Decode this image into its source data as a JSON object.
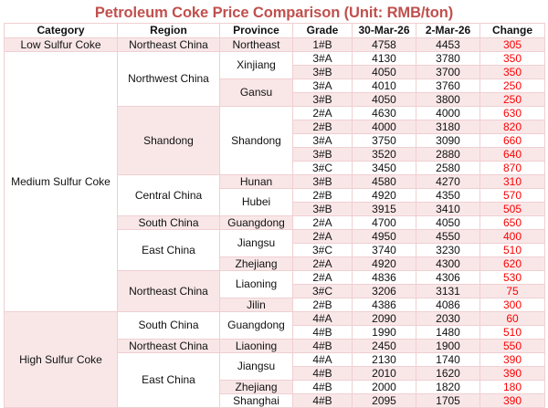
{
  "title": "Petroleum Coke Price Comparison  (Unit: RMB/ton)",
  "colors": {
    "title": "#c0504d",
    "change_text": "#ff0000",
    "row_shade": "#f9e7e8",
    "grid": "#f0cfd1"
  },
  "headers": [
    "Category",
    "Region",
    "Province",
    "Grade",
    "30-Mar-26",
    "2-Mar-26",
    "Change"
  ],
  "rows": [
    {
      "grade": "1#B",
      "mar30": "4758",
      "mar2": "4453",
      "change": "305"
    },
    {
      "grade": "3#A",
      "mar30": "4130",
      "mar2": "3780",
      "change": "350"
    },
    {
      "grade": "3#B",
      "mar30": "4050",
      "mar2": "3700",
      "change": "350"
    },
    {
      "grade": "3#A",
      "mar30": "4010",
      "mar2": "3760",
      "change": "250"
    },
    {
      "grade": "3#B",
      "mar30": "4050",
      "mar2": "3800",
      "change": "250"
    },
    {
      "grade": "2#A",
      "mar30": "4630",
      "mar2": "4000",
      "change": "630"
    },
    {
      "grade": "2#B",
      "mar30": "4000",
      "mar2": "3180",
      "change": "820"
    },
    {
      "grade": "3#A",
      "mar30": "3750",
      "mar2": "3090",
      "change": "660"
    },
    {
      "grade": "3#B",
      "mar30": "3520",
      "mar2": "2880",
      "change": "640"
    },
    {
      "grade": "3#C",
      "mar30": "3450",
      "mar2": "2580",
      "change": "870"
    },
    {
      "grade": "3#B",
      "mar30": "4580",
      "mar2": "4270",
      "change": "310"
    },
    {
      "grade": "2#B",
      "mar30": "4920",
      "mar2": "4350",
      "change": "570"
    },
    {
      "grade": "3#B",
      "mar30": "3915",
      "mar2": "3410",
      "change": "505"
    },
    {
      "grade": "2#A",
      "mar30": "4700",
      "mar2": "4050",
      "change": "650"
    },
    {
      "grade": "2#A",
      "mar30": "4950",
      "mar2": "4550",
      "change": "400"
    },
    {
      "grade": "3#C",
      "mar30": "3740",
      "mar2": "3230",
      "change": "510"
    },
    {
      "grade": "2#A",
      "mar30": "4920",
      "mar2": "4300",
      "change": "620"
    },
    {
      "grade": "2#A",
      "mar30": "4836",
      "mar2": "4306",
      "change": "530"
    },
    {
      "grade": "3#C",
      "mar30": "3206",
      "mar2": "3131",
      "change": "75"
    },
    {
      "grade": "2#B",
      "mar30": "4386",
      "mar2": "4086",
      "change": "300"
    },
    {
      "grade": "4#A",
      "mar30": "2090",
      "mar2": "2030",
      "change": "60"
    },
    {
      "grade": "4#B",
      "mar30": "1990",
      "mar2": "1480",
      "change": "510"
    },
    {
      "grade": "4#B",
      "mar30": "2450",
      "mar2": "1900",
      "change": "550"
    },
    {
      "grade": "4#A",
      "mar30": "2130",
      "mar2": "1740",
      "change": "390"
    },
    {
      "grade": "4#B",
      "mar30": "2010",
      "mar2": "1620",
      "change": "390"
    },
    {
      "grade": "4#B",
      "mar30": "2000",
      "mar2": "1820",
      "change": "180"
    },
    {
      "grade": "4#B",
      "mar30": "2095",
      "mar2": "1705",
      "change": "390"
    }
  ],
  "categories": [
    {
      "label": "Low Sulfur Coke",
      "start": 0,
      "span": 1,
      "shade": "pink"
    },
    {
      "label": "Medium Sulfur Coke",
      "start": 1,
      "span": 19,
      "shade": "white"
    },
    {
      "label": "High Sulfur Coke",
      "start": 20,
      "span": 7,
      "shade": "pink"
    }
  ],
  "regions": [
    {
      "label": "Northeast China",
      "start": 0,
      "span": 1,
      "shade": "pink"
    },
    {
      "label": "Northwest China",
      "start": 1,
      "span": 4,
      "shade": "white"
    },
    {
      "label": "Shandong",
      "start": 5,
      "span": 5,
      "shade": "pink"
    },
    {
      "label": "Central China",
      "start": 10,
      "span": 3,
      "shade": "white"
    },
    {
      "label": "South China",
      "start": 13,
      "span": 1,
      "shade": "pink"
    },
    {
      "label": "East China",
      "start": 14,
      "span": 3,
      "shade": "white"
    },
    {
      "label": "Northeast China",
      "start": 17,
      "span": 3,
      "shade": "pink"
    },
    {
      "label": "South China",
      "start": 20,
      "span": 2,
      "shade": "white"
    },
    {
      "label": "Northeast China",
      "start": 22,
      "span": 1,
      "shade": "pink"
    },
    {
      "label": "East China",
      "start": 23,
      "span": 4,
      "shade": "white"
    }
  ],
  "provinces": [
    {
      "label": "Northeast",
      "start": 0,
      "span": 1,
      "shade": "pink"
    },
    {
      "label": "Xinjiang",
      "start": 1,
      "span": 2,
      "shade": "white"
    },
    {
      "label": "Gansu",
      "start": 3,
      "span": 2,
      "shade": "pink"
    },
    {
      "label": "Shandong",
      "start": 5,
      "span": 5,
      "shade": "white"
    },
    {
      "label": "Hunan",
      "start": 10,
      "span": 1,
      "shade": "pink"
    },
    {
      "label": "Hubei",
      "start": 11,
      "span": 2,
      "shade": "white"
    },
    {
      "label": "Guangdong",
      "start": 13,
      "span": 1,
      "shade": "pink"
    },
    {
      "label": "Jiangsu",
      "start": 14,
      "span": 2,
      "shade": "white"
    },
    {
      "label": "Zhejiang",
      "start": 16,
      "span": 1,
      "shade": "pink"
    },
    {
      "label": "Liaoning",
      "start": 17,
      "span": 2,
      "shade": "white"
    },
    {
      "label": "Jilin",
      "start": 19,
      "span": 1,
      "shade": "pink"
    },
    {
      "label": "Guangdong",
      "start": 20,
      "span": 2,
      "shade": "white"
    },
    {
      "label": "Liaoning",
      "start": 22,
      "span": 1,
      "shade": "pink"
    },
    {
      "label": "Jiangsu",
      "start": 23,
      "span": 2,
      "shade": "white"
    },
    {
      "label": "Zhejiang",
      "start": 25,
      "span": 1,
      "shade": "pink"
    },
    {
      "label": "Shanghai",
      "start": 26,
      "span": 1,
      "shade": "white"
    }
  ]
}
